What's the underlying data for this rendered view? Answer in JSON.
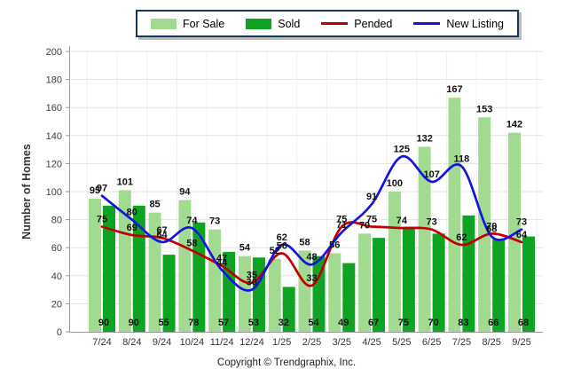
{
  "chart_data": {
    "type": "bar+line",
    "title": "",
    "categories": [
      "7/24",
      "8/24",
      "9/24",
      "10/24",
      "11/24",
      "12/24",
      "1/25",
      "2/25",
      "3/25",
      "4/25",
      "5/25",
      "6/25",
      "7/25",
      "8/25",
      "9/25"
    ],
    "series": [
      {
        "name": "For Sale",
        "type": "bar",
        "color": "#A3DA92",
        "values": [
          95,
          101,
          85,
          94,
          73,
          54,
          52,
          58,
          56,
          70,
          100,
          132,
          167,
          153,
          142
        ]
      },
      {
        "name": "Sold",
        "type": "bar",
        "color": "#0FA324",
        "values": [
          90,
          90,
          55,
          78,
          57,
          53,
          32,
          54,
          49,
          67,
          75,
          70,
          83,
          66,
          68
        ]
      },
      {
        "name": "Pended",
        "type": "line",
        "color": "#C00000",
        "values": [
          75,
          69,
          67,
          58,
          47,
          35,
          56,
          33,
          75,
          75,
          74,
          73,
          62,
          70,
          64
        ]
      },
      {
        "name": "New Listing",
        "type": "line",
        "color": "#1414E0",
        "values": [
          97,
          80,
          64,
          74,
          44,
          30,
          62,
          48,
          71,
          91,
          125,
          107,
          118,
          68,
          73
        ]
      }
    ],
    "xlabel": "",
    "ylabel": "Number of Homes",
    "ylim": [
      0,
      200
    ],
    "ytick_step": 20,
    "grid": true,
    "legend_position": "top"
  },
  "footer": {
    "text": "Copyright © Trendgraphix, Inc."
  }
}
